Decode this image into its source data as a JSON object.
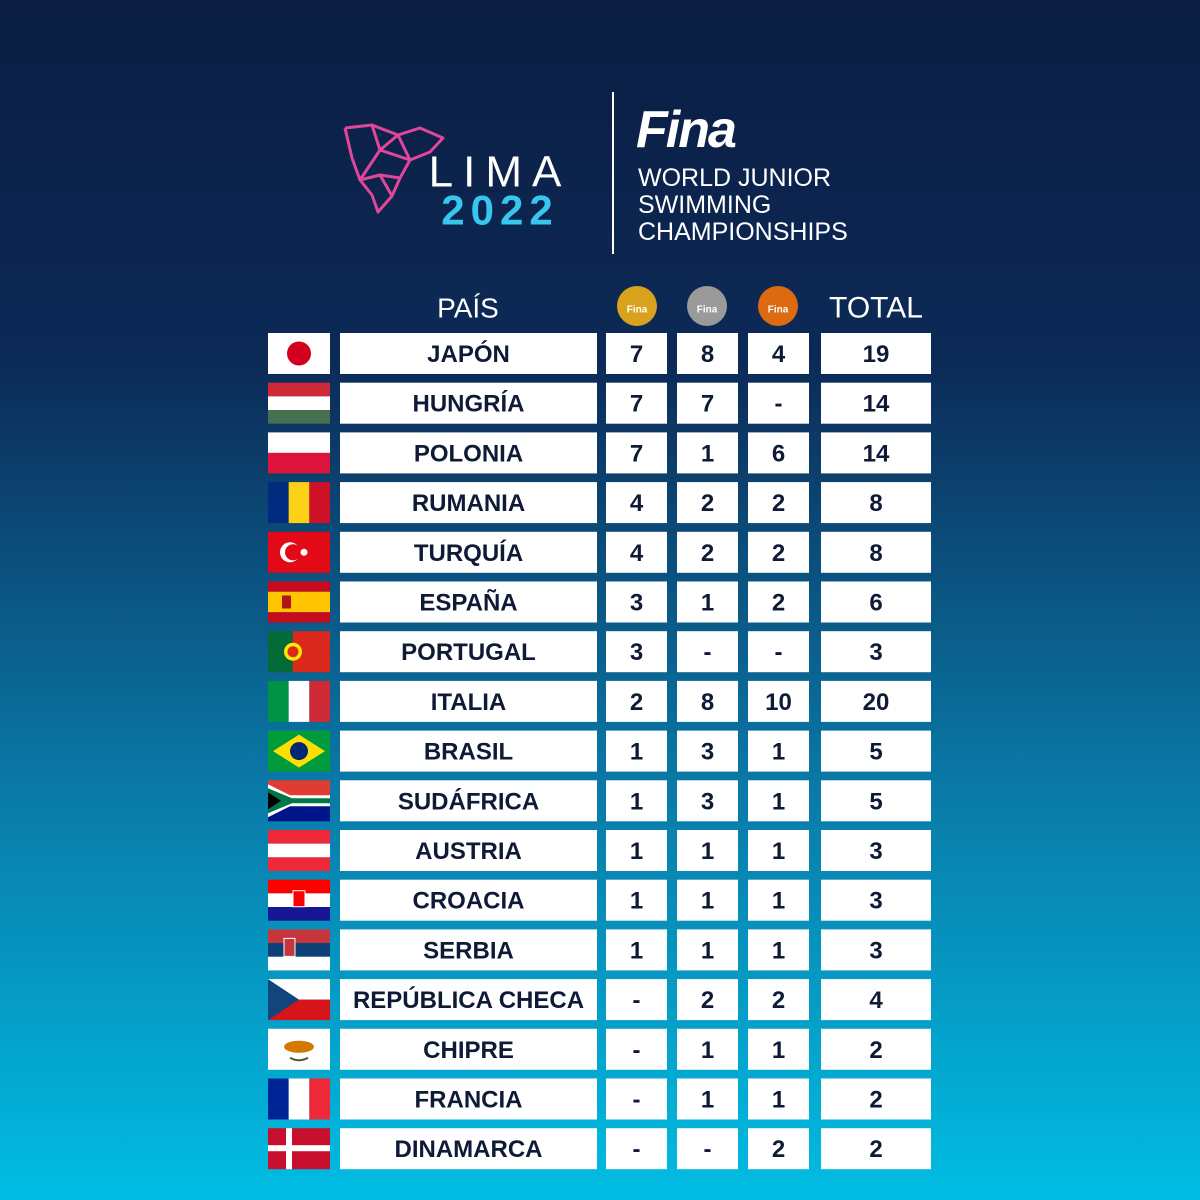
{
  "header": {
    "lima": "LIMA",
    "year": "2022",
    "fina": "Fina",
    "subtitle": [
      "WORLD JUNIOR",
      "SWIMMING",
      "CHAMPIONSHIPS"
    ]
  },
  "table": {
    "columns": [
      "PAÍS",
      "Fina",
      "Fina",
      "Fina",
      "TOTAL"
    ],
    "rows": [
      [
        "JAPÓN",
        7,
        8,
        4,
        19
      ],
      [
        "HUNGRÍA",
        7,
        7,
        "-",
        14
      ],
      [
        "POLONIA",
        7,
        1,
        6,
        14
      ],
      [
        "RUMANIA",
        4,
        2,
        2,
        8
      ],
      [
        "TURQUÍA",
        4,
        2,
        2,
        8
      ],
      [
        "ESPAÑA",
        3,
        1,
        2,
        6
      ],
      [
        "PORTUGAL",
        3,
        "-",
        "-",
        3
      ],
      [
        "ITALIA",
        2,
        8,
        10,
        20
      ],
      [
        "BRASIL",
        1,
        3,
        1,
        5
      ],
      [
        "SUDÁFRICA",
        1,
        3,
        1,
        5
      ],
      [
        "AUSTRIA",
        1,
        1,
        1,
        3
      ],
      [
        "CROACIA",
        1,
        1,
        1,
        3
      ],
      [
        "SERBIA",
        1,
        1,
        1,
        3
      ],
      [
        "REPÚBLICA CHECA",
        "-",
        2,
        2,
        4
      ],
      [
        "CHIPRE",
        "-",
        1,
        1,
        2
      ],
      [
        "FRANCIA",
        "-",
        1,
        1,
        2
      ],
      [
        "DINAMARCA",
        "-",
        "-",
        2,
        2
      ]
    ]
  }
}
